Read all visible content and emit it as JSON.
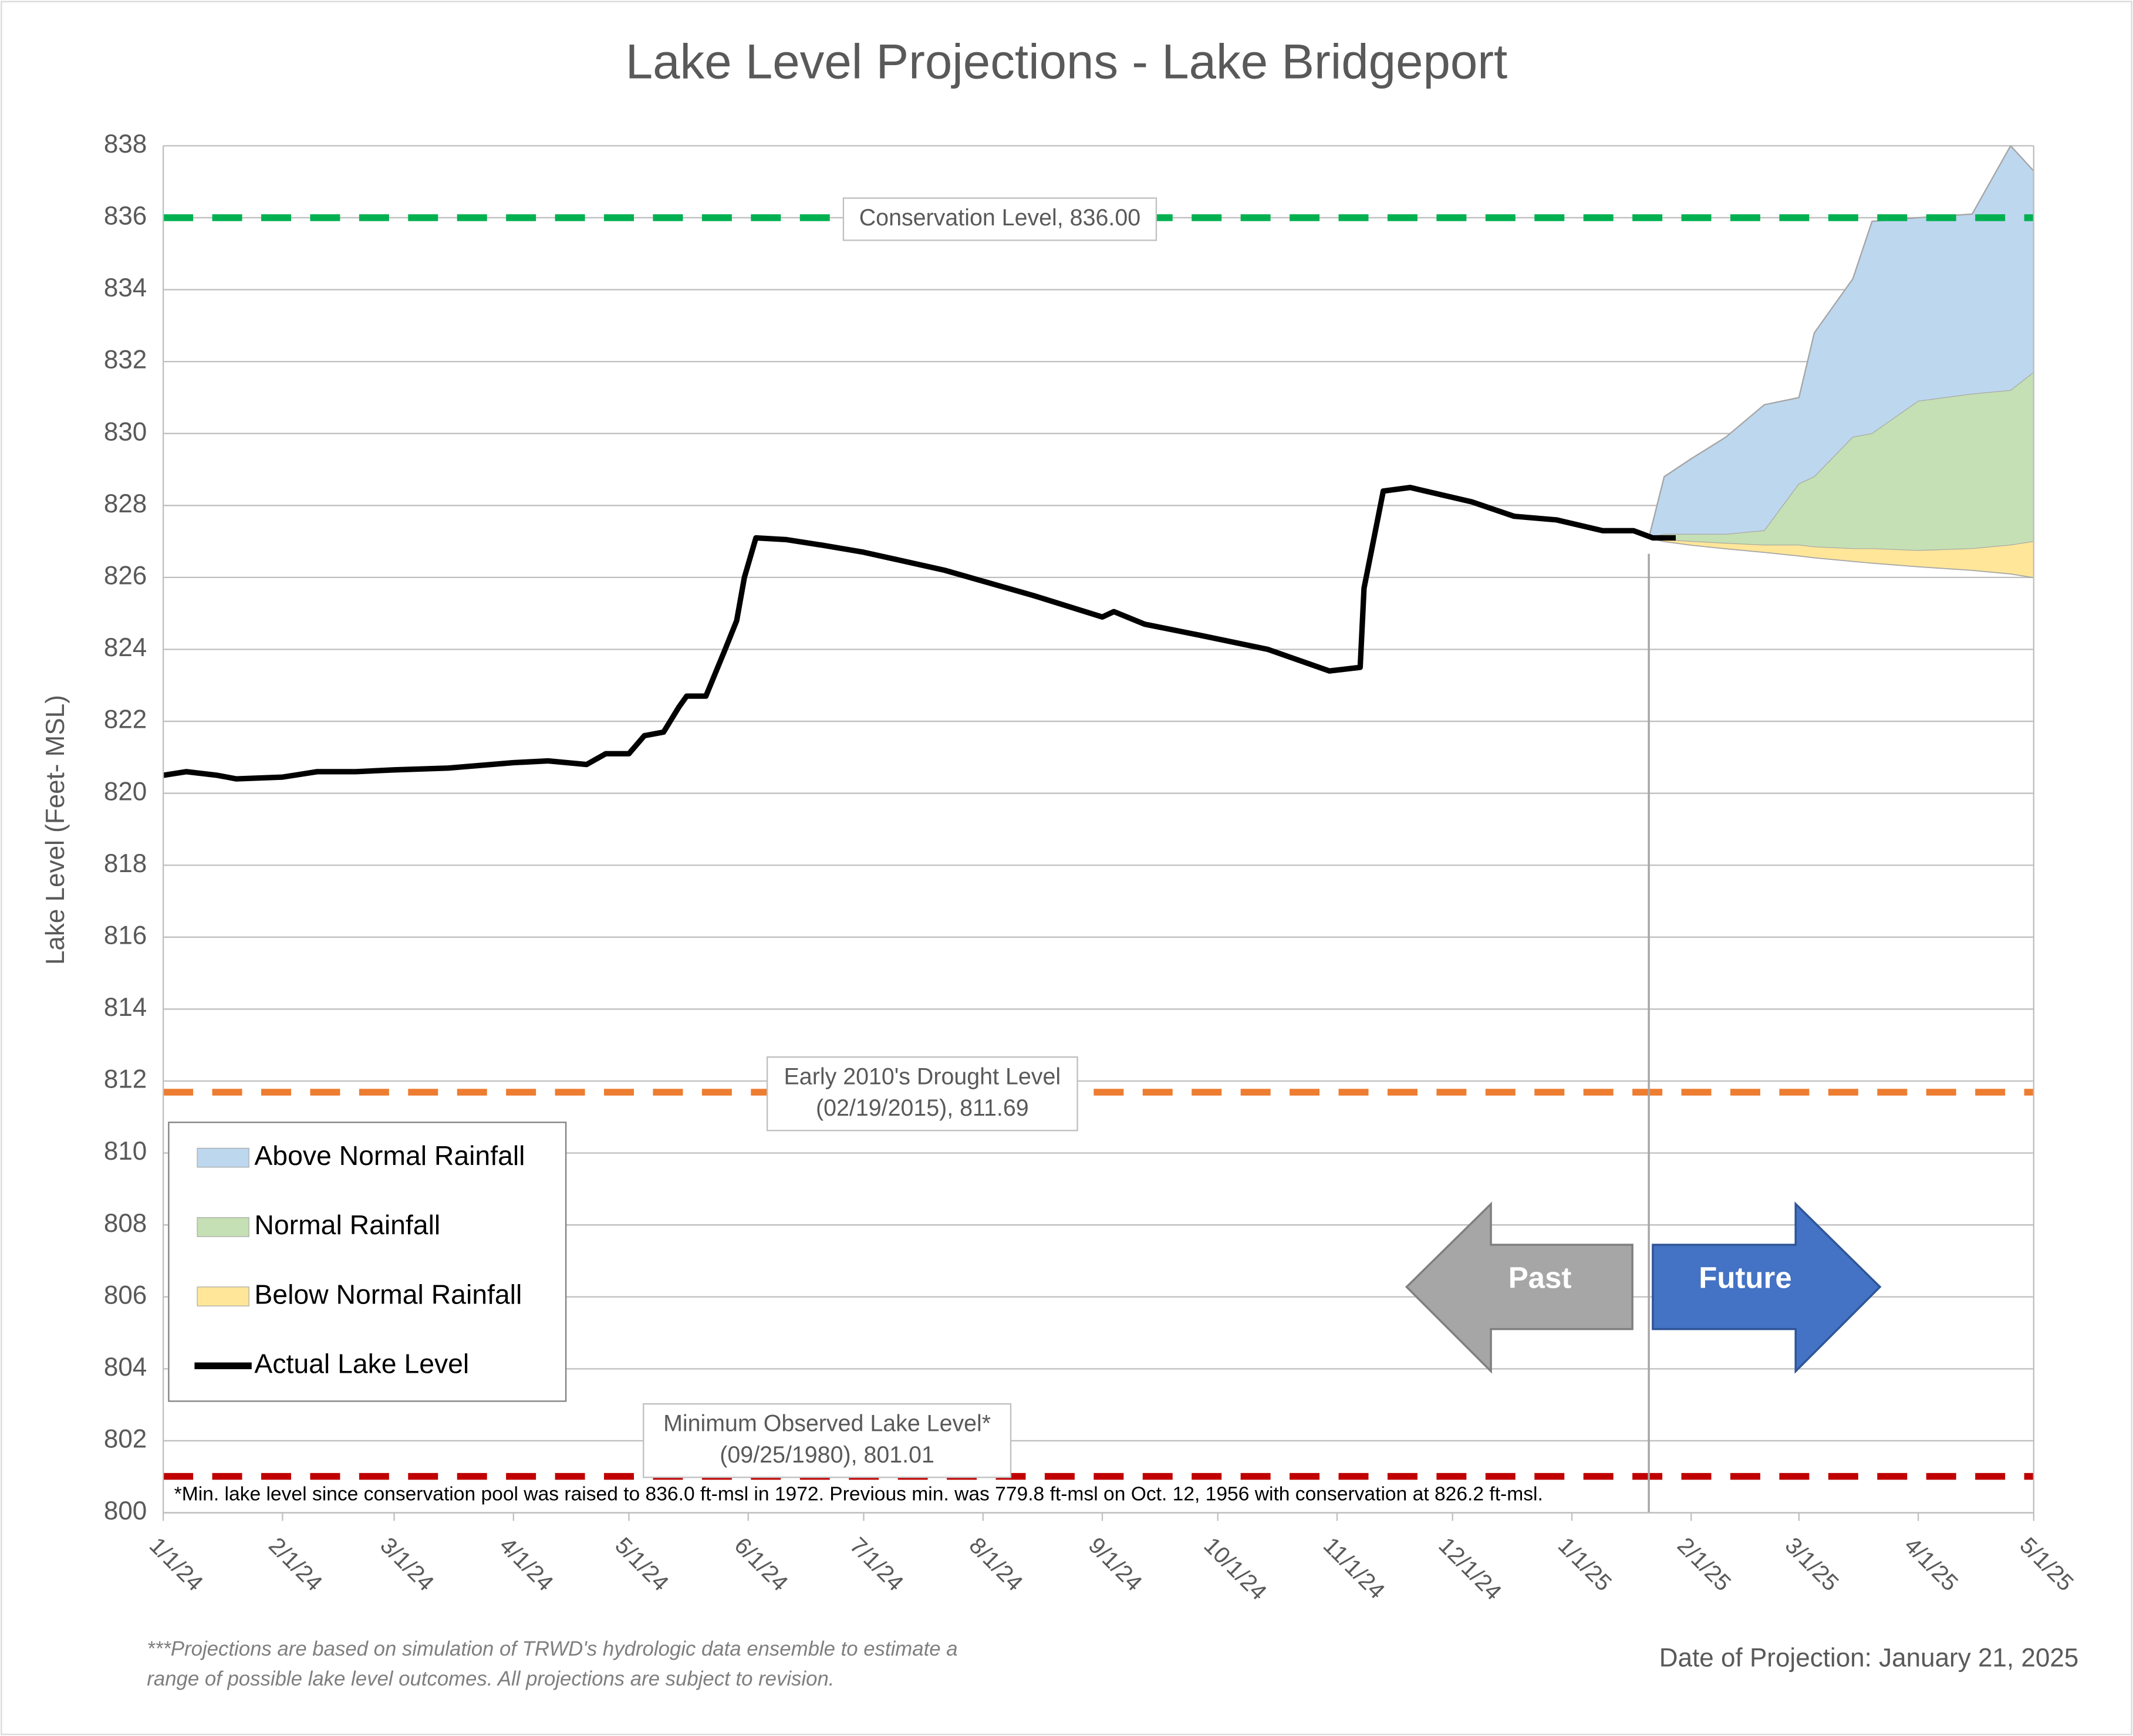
{
  "chart_data": {
    "type": "area",
    "title": "Lake Level Projections - Lake Bridgeport",
    "y_label": "Lake Level (Feet- MSL)",
    "xlim": [
      "1/1/24",
      "5/1/25"
    ],
    "xticks": [
      "1/1/24",
      "2/1/24",
      "3/1/24",
      "4/1/24",
      "5/1/24",
      "6/1/24",
      "7/1/24",
      "8/1/24",
      "9/1/24",
      "10/1/24",
      "11/1/24",
      "12/1/24",
      "1/1/25",
      "2/1/25",
      "3/1/25",
      "4/1/25",
      "5/1/25"
    ],
    "ylim": [
      800,
      838
    ],
    "yticks": [
      800,
      802,
      804,
      806,
      808,
      810,
      812,
      814,
      816,
      818,
      820,
      822,
      824,
      826,
      828,
      830,
      832,
      834,
      836,
      838
    ],
    "grid": true,
    "legend": "left",
    "series": [
      {
        "name": "Above Normal Rainfall",
        "type": "area",
        "color": "#bdd7ee",
        "x": [
          "1/21/25",
          "1/25/25",
          "2/1/25",
          "2/10/25",
          "2/20/25",
          "3/1/25",
          "3/5/25",
          "3/15/25",
          "3/20/25",
          "4/1/25",
          "4/15/25",
          "4/25/25",
          "5/1/25"
        ],
        "values": [
          827.1,
          828.8,
          829.3,
          829.9,
          830.8,
          831.0,
          832.8,
          834.3,
          835.9,
          836.0,
          836.1,
          838.0,
          837.3
        ]
      },
      {
        "name": "Normal Rainfall",
        "type": "area",
        "color": "#c5e0b4",
        "x": [
          "1/21/25",
          "1/25/25",
          "2/1/25",
          "2/10/25",
          "2/20/25",
          "3/1/25",
          "3/5/25",
          "3/15/25",
          "3/20/25",
          "4/1/25",
          "4/15/25",
          "4/25/25",
          "5/1/25"
        ],
        "values": [
          827.1,
          827.2,
          827.2,
          827.2,
          827.3,
          828.6,
          828.8,
          829.9,
          830.0,
          830.9,
          831.1,
          831.2,
          831.7
        ]
      },
      {
        "name": "Below Normal Rainfall",
        "type": "area",
        "color": "#ffe699",
        "x": [
          "1/21/25",
          "1/25/25",
          "2/1/25",
          "2/10/25",
          "2/20/25",
          "3/1/25",
          "3/5/25",
          "3/15/25",
          "3/20/25",
          "4/1/25",
          "4/15/25",
          "4/25/25",
          "5/1/25"
        ],
        "values": [
          827.1,
          827.05,
          827.0,
          826.95,
          826.9,
          826.9,
          826.85,
          826.8,
          826.8,
          826.75,
          826.8,
          826.9,
          827.0
        ],
        "lower": [
          827.1,
          827.0,
          826.9,
          826.8,
          826.7,
          826.6,
          826.55,
          826.45,
          826.4,
          826.3,
          826.2,
          826.1,
          826.0
        ]
      },
      {
        "name": "Actual Lake Level",
        "type": "line",
        "color": "#000000",
        "x": [
          "1/1/24",
          "1/7/24",
          "1/15/24",
          "1/20/24",
          "2/1/24",
          "2/10/24",
          "2/20/24",
          "3/1/24",
          "3/15/24",
          "4/1/24",
          "4/10/24",
          "4/20/24",
          "4/25/24",
          "5/1/24",
          "5/5/24",
          "5/10/24",
          "5/14/24",
          "5/16/24",
          "5/21/24",
          "5/26/24",
          "5/29/24",
          "5/31/24",
          "6/3/24",
          "6/11/24",
          "6/20/24",
          "7/1/24",
          "7/22/24",
          "8/14/24",
          "9/1/24",
          "9/4/24",
          "9/12/24",
          "9/26/24",
          "10/14/24",
          "10/30/24",
          "11/7/24",
          "11/8/24",
          "11/13/24",
          "11/20/24",
          "12/6/24",
          "12/17/24",
          "12/28/24",
          "1/9/25",
          "1/17/25",
          "1/22/25",
          "1/28/25"
        ],
        "values": [
          820.5,
          820.6,
          820.5,
          820.4,
          820.45,
          820.6,
          820.6,
          820.65,
          820.7,
          820.85,
          820.9,
          820.8,
          821.1,
          821.1,
          821.6,
          821.7,
          822.4,
          822.7,
          822.7,
          824.0,
          824.8,
          826.0,
          827.1,
          827.05,
          826.9,
          826.7,
          826.2,
          825.5,
          824.9,
          825.05,
          824.7,
          824.4,
          824.0,
          823.4,
          823.5,
          825.7,
          828.4,
          828.5,
          828.1,
          827.7,
          827.6,
          827.3,
          827.3,
          827.1,
          827.1
        ]
      }
    ],
    "reference_lines": [
      {
        "value": 836,
        "color": "#00b050",
        "label": [
          "Conservation Level, 836.00"
        ]
      },
      {
        "value": 811.69,
        "color": "#ed7d31",
        "label": [
          "Early 2010's Drought Level",
          "(02/19/2015), 811.69"
        ]
      },
      {
        "value": 801.01,
        "color": "#c00000",
        "label": [
          "Minimum Observed Lake Level*",
          "(09/25/1980), 801.01"
        ]
      }
    ],
    "projection_date": "1/21/25",
    "arrows": {
      "past": "Past",
      "future": "Future"
    },
    "note": "*Min. lake level since conservation pool was raised to 836.0 ft-msl in 1972.  Previous min. was 779.8 ft-msl on Oct. 12, 1956 with conservation at 826.2 ft-msl.",
    "footnote": [
      "***Projections are based on simulation of TRWD's hydrologic data ensemble to estimate a",
      "range of possible lake level outcomes.  All projections are subject to revision."
    ],
    "projection_date_label": "Date of Projection: January 21, 2025"
  }
}
